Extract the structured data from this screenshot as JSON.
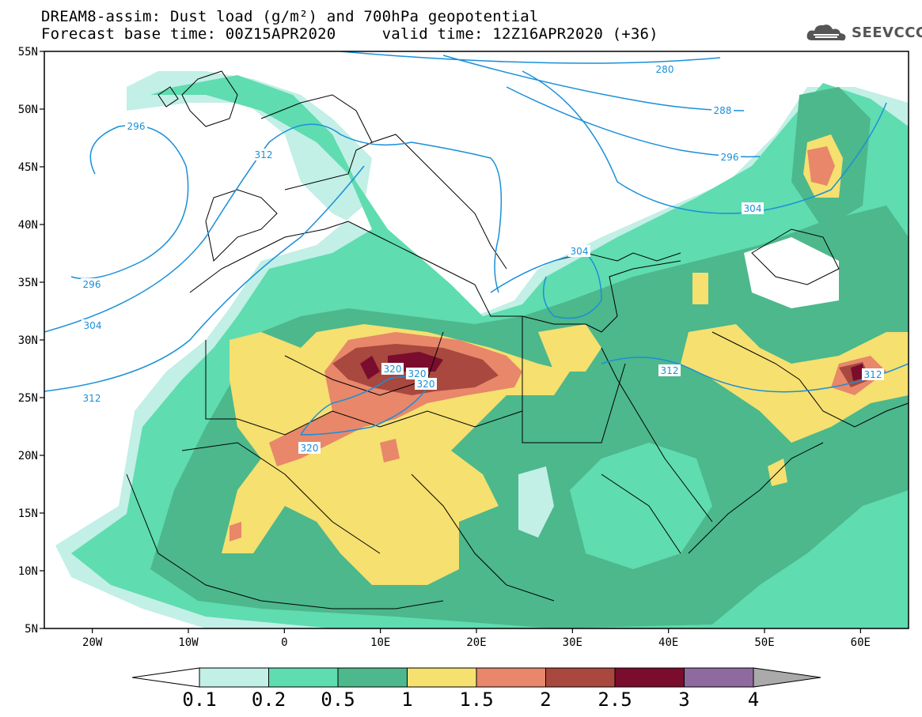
{
  "title": {
    "line1": "DREAM8-assim: Dust load (g/m²) and 700hPa geopotential",
    "line2": "Forecast base time: 00Z15APR2020     valid time: 12Z16APR2020 (+36)"
  },
  "logo": {
    "text": "SEEVCCC",
    "icon": "cloud-icon"
  },
  "axes": {
    "lat_ticks": [
      {
        "value": 55,
        "label": "55N"
      },
      {
        "value": 50,
        "label": "50N"
      },
      {
        "value": 45,
        "label": "45N"
      },
      {
        "value": 40,
        "label": "40N"
      },
      {
        "value": 35,
        "label": "35N"
      },
      {
        "value": 30,
        "label": "30N"
      },
      {
        "value": 25,
        "label": "25N"
      },
      {
        "value": 20,
        "label": "20N"
      },
      {
        "value": 15,
        "label": "15N"
      },
      {
        "value": 10,
        "label": "10N"
      },
      {
        "value": 5,
        "label": "5N"
      }
    ],
    "lon_ticks": [
      {
        "value": -20,
        "label": "20W"
      },
      {
        "value": -10,
        "label": "10W"
      },
      {
        "value": 0,
        "label": "0"
      },
      {
        "value": 10,
        "label": "10E"
      },
      {
        "value": 20,
        "label": "20E"
      },
      {
        "value": 30,
        "label": "30E"
      },
      {
        "value": 40,
        "label": "40E"
      },
      {
        "value": 50,
        "label": "50E"
      },
      {
        "value": 60,
        "label": "60E"
      }
    ],
    "lon_range": [
      -25,
      65
    ],
    "lat_range": [
      5,
      55
    ]
  },
  "colorbar": {
    "labels": [
      "0.1",
      "0.2",
      "0.5",
      "1",
      "1.5",
      "2",
      "2.5",
      "3",
      "4"
    ],
    "colors": [
      "#c2efe6",
      "#5fdcb0",
      "#4cb88c",
      "#f5e070",
      "#e8876a",
      "#a8483e",
      "#7a0c2e",
      "#8f6a9e"
    ],
    "under_color": "#ffffff",
    "over_color": "#aaaaaa"
  },
  "contours": [
    {
      "label": "280"
    },
    {
      "label": "288"
    },
    {
      "label": "296"
    },
    {
      "label": "296"
    },
    {
      "label": "296"
    },
    {
      "label": "304"
    },
    {
      "label": "304"
    },
    {
      "label": "304"
    },
    {
      "label": "312"
    },
    {
      "label": "312"
    },
    {
      "label": "312"
    },
    {
      "label": "312"
    },
    {
      "label": "320"
    },
    {
      "label": "320"
    },
    {
      "label": "320"
    },
    {
      "label": "320"
    }
  ]
}
